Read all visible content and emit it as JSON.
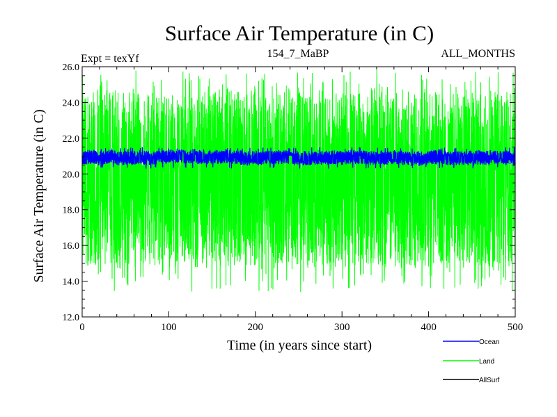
{
  "chart_data": {
    "type": "line",
    "title": "Surface Air Temperature (in C)",
    "subtitle_left": "Expt = texYf",
    "subtitle_center": "154_7_MaBP",
    "subtitle_right": "ALL_MONTHS",
    "xlabel": "Time (in years since start)",
    "ylabel": "Surface Air Temperature (in C)",
    "xlim": [
      0,
      500
    ],
    "ylim": [
      12.0,
      26.0
    ],
    "x_ticks": [
      0,
      100,
      200,
      300,
      400,
      500
    ],
    "x_tick_labels": [
      "0",
      "100",
      "200",
      "300",
      "400",
      "500"
    ],
    "y_ticks": [
      12.0,
      14.0,
      16.0,
      18.0,
      20.0,
      22.0,
      24.0,
      26.0
    ],
    "y_tick_labels": [
      "12.0",
      "14.0",
      "16.0",
      "18.0",
      "20.0",
      "22.0",
      "24.0",
      "26.0"
    ],
    "grid": false,
    "legend_position": "bottom-right",
    "series": [
      {
        "name": "Ocean",
        "color": "#0000ff",
        "typical_range": [
          20.5,
          21.3
        ],
        "extreme_range": [
          20.3,
          21.5
        ],
        "mean": 20.9
      },
      {
        "name": "Land",
        "color": "#00ff00",
        "typical_range": [
          14.8,
          24.6
        ],
        "extreme_range": [
          13.4,
          25.8
        ],
        "mean": 19.7
      },
      {
        "name": "AllSurf",
        "color": "#000000"
      }
    ]
  }
}
